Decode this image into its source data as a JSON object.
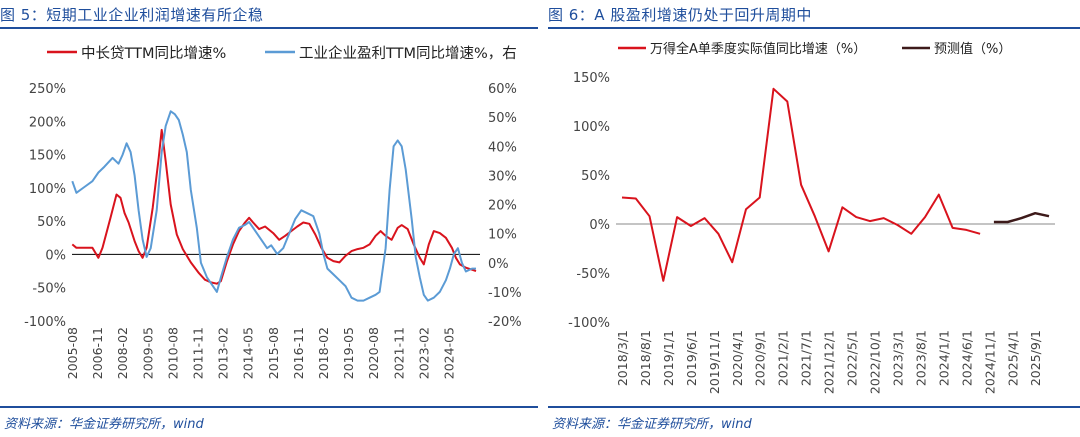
{
  "chart_data": [
    {
      "id": "left",
      "type": "line",
      "title": "图 5：短期工业企业利润增速有所企稳",
      "source": "资料来源：华金证券研究所，wind",
      "x_labels": [
        "2005-08",
        "2006-11",
        "2008-02",
        "2009-05",
        "2010-08",
        "2011-11",
        "2013-02",
        "2014-05",
        "2015-08",
        "2016-11",
        "2018-02",
        "2019-05",
        "2020-08",
        "2021-11",
        "2023-02",
        "2024-05"
      ],
      "y_left": {
        "min": -100,
        "max": 250,
        "step": 50,
        "tick_labels": [
          "-100%",
          "-50%",
          "0%",
          "50%",
          "100%",
          "150%",
          "200%",
          "250%"
        ]
      },
      "y_right": {
        "min": -20,
        "max": 60,
        "step": 10,
        "tick_labels": [
          "-20%",
          "-10%",
          "0%",
          "10%",
          "20%",
          "30%",
          "40%",
          "50%",
          "60%"
        ]
      },
      "series": [
        {
          "name": "中长贷TTM同比增速%",
          "color": "#d9131d",
          "axis": "left",
          "points": [
            [
              2005.6,
              15
            ],
            [
              2005.8,
              10
            ],
            [
              2006.3,
              10
            ],
            [
              2006.6,
              10
            ],
            [
              2006.9,
              -5
            ],
            [
              2007.1,
              10
            ],
            [
              2007.5,
              55
            ],
            [
              2007.8,
              90
            ],
            [
              2008.0,
              85
            ],
            [
              2008.2,
              62
            ],
            [
              2008.4,
              48
            ],
            [
              2008.7,
              20
            ],
            [
              2008.9,
              5
            ],
            [
              2009.1,
              -5
            ],
            [
              2009.3,
              10
            ],
            [
              2009.6,
              70
            ],
            [
              2009.9,
              145
            ],
            [
              2010.05,
              187
            ],
            [
              2010.25,
              140
            ],
            [
              2010.5,
              75
            ],
            [
              2010.8,
              30
            ],
            [
              2011.1,
              8
            ],
            [
              2011.5,
              -12
            ],
            [
              2011.9,
              -28
            ],
            [
              2012.2,
              -38
            ],
            [
              2012.5,
              -42
            ],
            [
              2012.8,
              -44
            ],
            [
              2013.0,
              -40
            ],
            [
              2013.3,
              -10
            ],
            [
              2013.6,
              15
            ],
            [
              2013.9,
              35
            ],
            [
              2014.2,
              48
            ],
            [
              2014.4,
              55
            ],
            [
              2014.6,
              48
            ],
            [
              2014.9,
              38
            ],
            [
              2015.2,
              42
            ],
            [
              2015.6,
              32
            ],
            [
              2015.9,
              22
            ],
            [
              2016.2,
              28
            ],
            [
              2016.5,
              35
            ],
            [
              2016.8,
              42
            ],
            [
              2017.1,
              48
            ],
            [
              2017.4,
              46
            ],
            [
              2017.7,
              30
            ],
            [
              2018.0,
              10
            ],
            [
              2018.3,
              -5
            ],
            [
              2018.6,
              -10
            ],
            [
              2018.9,
              -12
            ],
            [
              2019.2,
              -2
            ],
            [
              2019.5,
              5
            ],
            [
              2019.8,
              8
            ],
            [
              2020.1,
              10
            ],
            [
              2020.4,
              15
            ],
            [
              2020.7,
              28
            ],
            [
              2020.95,
              35
            ],
            [
              2021.2,
              28
            ],
            [
              2021.5,
              22
            ],
            [
              2021.8,
              40
            ],
            [
              2022.0,
              44
            ],
            [
              2022.3,
              38
            ],
            [
              2022.6,
              15
            ],
            [
              2022.9,
              -5
            ],
            [
              2023.1,
              -15
            ],
            [
              2023.35,
              15
            ],
            [
              2023.6,
              35
            ],
            [
              2023.9,
              32
            ],
            [
              2024.2,
              25
            ],
            [
              2024.5,
              10
            ],
            [
              2024.7,
              -5
            ],
            [
              2024.9,
              -15
            ],
            [
              2025.2,
              -20
            ],
            [
              2025.5,
              -23
            ],
            [
              2025.7,
              -25
            ]
          ]
        },
        {
          "name": "工业企业盈利TTM同比增速%，右",
          "color": "#5b9bd5",
          "axis": "right",
          "points": [
            [
              2005.6,
              28
            ],
            [
              2005.8,
              24
            ],
            [
              2006.2,
              26
            ],
            [
              2006.6,
              28
            ],
            [
              2006.9,
              31
            ],
            [
              2007.2,
              33
            ],
            [
              2007.6,
              36
            ],
            [
              2007.9,
              34
            ],
            [
              2008.1,
              37
            ],
            [
              2008.3,
              41
            ],
            [
              2008.5,
              38
            ],
            [
              2008.7,
              30
            ],
            [
              2008.9,
              18
            ],
            [
              2009.1,
              8
            ],
            [
              2009.3,
              2
            ],
            [
              2009.5,
              5
            ],
            [
              2009.8,
              18
            ],
            [
              2010.05,
              38
            ],
            [
              2010.25,
              47
            ],
            [
              2010.5,
              52
            ],
            [
              2010.7,
              51
            ],
            [
              2010.9,
              49
            ],
            [
              2011.1,
              44
            ],
            [
              2011.3,
              38
            ],
            [
              2011.5,
              25
            ],
            [
              2011.8,
              12
            ],
            [
              2012.0,
              0
            ],
            [
              2012.3,
              -5
            ],
            [
              2012.6,
              -8
            ],
            [
              2012.8,
              -10
            ],
            [
              2013.0,
              -5
            ],
            [
              2013.3,
              2
            ],
            [
              2013.6,
              8
            ],
            [
              2013.9,
              12
            ],
            [
              2014.2,
              13
            ],
            [
              2014.4,
              14
            ],
            [
              2014.7,
              11
            ],
            [
              2015.0,
              8
            ],
            [
              2015.3,
              5
            ],
            [
              2015.5,
              6
            ],
            [
              2015.8,
              3
            ],
            [
              2016.1,
              5
            ],
            [
              2016.4,
              10
            ],
            [
              2016.7,
              15
            ],
            [
              2017.0,
              18
            ],
            [
              2017.3,
              17
            ],
            [
              2017.6,
              16
            ],
            [
              2017.9,
              10
            ],
            [
              2018.1,
              3
            ],
            [
              2018.3,
              -2
            ],
            [
              2018.6,
              -4
            ],
            [
              2018.9,
              -6
            ],
            [
              2019.2,
              -8
            ],
            [
              2019.5,
              -12
            ],
            [
              2019.8,
              -13
            ],
            [
              2020.1,
              -13
            ],
            [
              2020.4,
              -12
            ],
            [
              2020.7,
              -11
            ],
            [
              2020.9,
              -10
            ],
            [
              2021.2,
              5
            ],
            [
              2021.4,
              25
            ],
            [
              2021.6,
              40
            ],
            [
              2021.8,
              42
            ],
            [
              2022.0,
              40
            ],
            [
              2022.2,
              32
            ],
            [
              2022.5,
              15
            ],
            [
              2022.7,
              2
            ],
            [
              2022.9,
              -5
            ],
            [
              2023.1,
              -11
            ],
            [
              2023.3,
              -13
            ],
            [
              2023.6,
              -12
            ],
            [
              2023.9,
              -10
            ],
            [
              2024.2,
              -6
            ],
            [
              2024.4,
              -2
            ],
            [
              2024.6,
              3
            ],
            [
              2024.8,
              5
            ],
            [
              2025.0,
              0
            ],
            [
              2025.2,
              -3
            ],
            [
              2025.5,
              -2
            ],
            [
              2025.7,
              -2
            ]
          ]
        }
      ]
    },
    {
      "id": "right",
      "type": "line",
      "title": "图 6：A 股盈利增速仍处于回升周期中",
      "source": "资料来源：华金证券研究所，wind",
      "categories": [
        "2018/3/1",
        "2018/6/1",
        "2018/9/1",
        "2018/12/1",
        "2019/3/1",
        "2019/6/1",
        "2019/9/1",
        "2019/12/1",
        "2020/3/1",
        "2020/6/1",
        "2020/9/1",
        "2020/12/1",
        "2021/3/1",
        "2021/6/1",
        "2021/9/1",
        "2021/12/1",
        "2022/3/1",
        "2022/6/1",
        "2022/9/1",
        "2022/12/1",
        "2023/3/1",
        "2023/6/1",
        "2023/9/1",
        "2023/12/1",
        "2024/3/1",
        "2024/6/1",
        "2024/9/1",
        "2024/12/1",
        "2025/3/1",
        "2025/6/1",
        "2025/9/1",
        "2025/12/1"
      ],
      "x_tick_labels": [
        "2018/3/1",
        "2018/8/1",
        "2019/1/1",
        "2019/6/1",
        "2019/11/1",
        "2020/4/1",
        "2020/9/1",
        "2021/2/1",
        "2021/7/1",
        "2021/12/1",
        "2022/5/1",
        "2022/10/1",
        "2023/3/1",
        "2023/8/1",
        "2024/1/1",
        "2024/6/1",
        "2024/11/1",
        "2025/4/1",
        "2025/9/1"
      ],
      "y": {
        "min": -100,
        "max": 150,
        "step": 50,
        "tick_labels": [
          "-100%",
          "-50%",
          "0%",
          "50%",
          "100%",
          "150%"
        ]
      },
      "series": [
        {
          "name": "万得全A单季度实际值同比增速（%）",
          "color": "#d9131d",
          "values": [
            27,
            26,
            8,
            -58,
            7,
            -2,
            6,
            -10,
            -39,
            15,
            27,
            138,
            125,
            40,
            8,
            -28,
            17,
            7,
            3,
            6,
            -1,
            -10,
            7,
            30,
            -4,
            -6,
            -10,
            null,
            null,
            null,
            null,
            null
          ]
        },
        {
          "name": "预测值（%）",
          "color": "#3d1a1a",
          "values": [
            null,
            null,
            null,
            null,
            null,
            null,
            null,
            null,
            null,
            null,
            null,
            null,
            null,
            null,
            null,
            null,
            null,
            null,
            null,
            null,
            null,
            null,
            null,
            null,
            null,
            null,
            null,
            2,
            2,
            6,
            11,
            8
          ]
        }
      ]
    }
  ]
}
